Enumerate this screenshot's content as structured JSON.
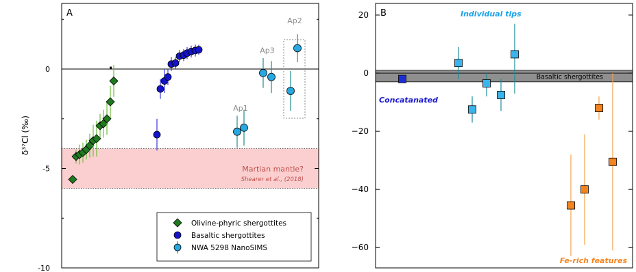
{
  "chart_data": [
    {
      "type": "scatter",
      "panel_label": "A",
      "ylabel": "δ³⁷Cl (‰)",
      "ylim": [
        -10,
        3.3
      ],
      "yticks": [
        0,
        -5,
        -10
      ],
      "ytick_labels": [
        "0",
        "-5",
        "-10"
      ],
      "minor_yticks": [
        -7.5,
        -2.5,
        2.5
      ],
      "reference_line": 0,
      "colors": {
        "olivine": "#1f7a1f",
        "basaltic": "#1414c8",
        "nanosims": "#27a8e0",
        "nanosims_err": "#1a8c8c",
        "olivine_err": "#6bbf3a",
        "basaltic_err": "#3a3ae0",
        "band_fill": "#fbcfcf",
        "band_text": "#c0504d"
      },
      "shaded_band": {
        "y_from": -6,
        "y_to": -4,
        "label": "Martian mantle?",
        "citation": "Shearer et al., (2018)"
      },
      "legend": {
        "placement": "bottom-right",
        "entries": [
          {
            "label": "Olivine-phyric shergottites",
            "series": "olivine",
            "marker": "diamond"
          },
          {
            "label": "Basaltic shergottites",
            "series": "basaltic",
            "marker": "circle"
          },
          {
            "label": "NWA 5298 NanoSIMS",
            "series": "nanosims",
            "marker": "circle"
          }
        ]
      },
      "group_labels": [
        {
          "text": "Ap1",
          "x": 351,
          "y": -2.1
        },
        {
          "text": "Ap3",
          "x": 390,
          "y": 0.8
        },
        {
          "text": "Ap2",
          "x": 430,
          "y": 2.3
        }
      ],
      "series": [
        {
          "name": "Olivine-phyric shergottites",
          "key": "olivine",
          "marker": "diamond",
          "points": [
            {
              "x": 106,
              "y": -5.55,
              "err": 0
            },
            {
              "x": 111,
              "y": -4.4,
              "err": 0.35
            },
            {
              "x": 116,
              "y": -4.3,
              "err": 0.5
            },
            {
              "x": 121,
              "y": -4.2,
              "err": 0.5
            },
            {
              "x": 126,
              "y": -4.05,
              "err": 0.5
            },
            {
              "x": 131,
              "y": -3.85,
              "err": 0.6
            },
            {
              "x": 136,
              "y": -3.6,
              "err": 0.8
            },
            {
              "x": 141,
              "y": -3.5,
              "err": 0.9
            },
            {
              "x": 146,
              "y": -2.85,
              "err": 0.6
            },
            {
              "x": 151,
              "y": -2.75,
              "err": 0.7
            },
            {
              "x": 156,
              "y": -2.5,
              "err": 0.8
            },
            {
              "x": 161,
              "y": -1.65,
              "err": 0.8
            },
            {
              "x": 166,
              "y": -0.6,
              "err": 0.8
            }
          ]
        },
        {
          "name": "Basaltic shergottites",
          "key": "basaltic",
          "marker": "circle",
          "points": [
            {
              "x": 229,
              "y": -3.3,
              "err": 0.8
            },
            {
              "x": 234,
              "y": -1.0,
              "err": 0.5
            },
            {
              "x": 240,
              "y": -0.6,
              "err": 0.6
            },
            {
              "x": 245,
              "y": -0.4,
              "err": 0.4
            },
            {
              "x": 250,
              "y": 0.25,
              "err": 0.35
            },
            {
              "x": 256,
              "y": 0.3,
              "err": 0.3
            },
            {
              "x": 262,
              "y": 0.65,
              "err": 0.3
            },
            {
              "x": 268,
              "y": 0.7,
              "err": 0.3
            },
            {
              "x": 273,
              "y": 0.8,
              "err": 0.3
            },
            {
              "x": 279,
              "y": 0.88,
              "err": 0.3
            },
            {
              "x": 285,
              "y": 0.93,
              "err": 0.3
            },
            {
              "x": 290,
              "y": 0.97,
              "err": 0.25
            }
          ]
        },
        {
          "name": "NWA 5298 NanoSIMS",
          "key": "nanosims",
          "marker": "circle",
          "points": [
            {
              "x": 346,
              "y": -3.15,
              "err": 0.8
            },
            {
              "x": 356,
              "y": -2.95,
              "err": 0.9
            },
            {
              "x": 384,
              "y": -0.2,
              "err": 0.75
            },
            {
              "x": 396,
              "y": -0.4,
              "err": 0.8
            },
            {
              "x": 424,
              "y": -1.1,
              "err": 1.0
            },
            {
              "x": 434,
              "y": 1.05,
              "err": 0.7
            }
          ]
        }
      ]
    },
    {
      "type": "scatter",
      "panel_label": "B",
      "ylim": [
        -67,
        24
      ],
      "yticks": [
        20,
        0,
        -20,
        -40,
        -60
      ],
      "ytick_labels": [
        "20",
        "0",
        "−20",
        "−40",
        "−60"
      ],
      "shaded_band": {
        "y_from": -3,
        "y_to": 1,
        "label": "Basaltic shergottites"
      },
      "colors": {
        "concat": "#1a2ed8",
        "tips": "#3ab4ec",
        "fe": "#f5841f",
        "tips_err": "#1a8c9a",
        "fe_err": "#f5a34a",
        "concat_label": "#1a1ad0",
        "tips_label": "#1aa3e8",
        "fe_label": "#f5841f"
      },
      "annotations": [
        {
          "text": "Individual tips",
          "series": "tips"
        },
        {
          "text": "Concatanated",
          "series": "concat"
        },
        {
          "text": "Fe-rich features",
          "series": "fe"
        }
      ],
      "series": [
        {
          "key": "concat",
          "marker": "square",
          "points": [
            {
              "x": 0,
              "y": -2,
              "lo": -2,
              "hi": -2
            }
          ]
        },
        {
          "key": "tips",
          "marker": "square",
          "points": [
            {
              "x": 1,
              "y": 3.5,
              "lo": -2,
              "hi": 9
            },
            {
              "x": 2,
              "y": -12.5,
              "lo": -17,
              "hi": -8
            },
            {
              "x": 3,
              "y": -3.5,
              "lo": -8,
              "hi": 0
            },
            {
              "x": 4,
              "y": -7.5,
              "lo": -13,
              "hi": -2
            },
            {
              "x": 5,
              "y": 6.5,
              "lo": -7,
              "hi": 17
            }
          ]
        },
        {
          "key": "fe",
          "marker": "square",
          "points": [
            {
              "x": 6,
              "y": -45.5,
              "lo": -63,
              "hi": -28
            },
            {
              "x": 7,
              "y": -40,
              "lo": -59,
              "hi": -21
            },
            {
              "x": 8,
              "y": -12,
              "lo": -16,
              "hi": -8
            },
            {
              "x": 9,
              "y": -30.5,
              "lo": -61,
              "hi": 0
            }
          ]
        }
      ]
    }
  ]
}
